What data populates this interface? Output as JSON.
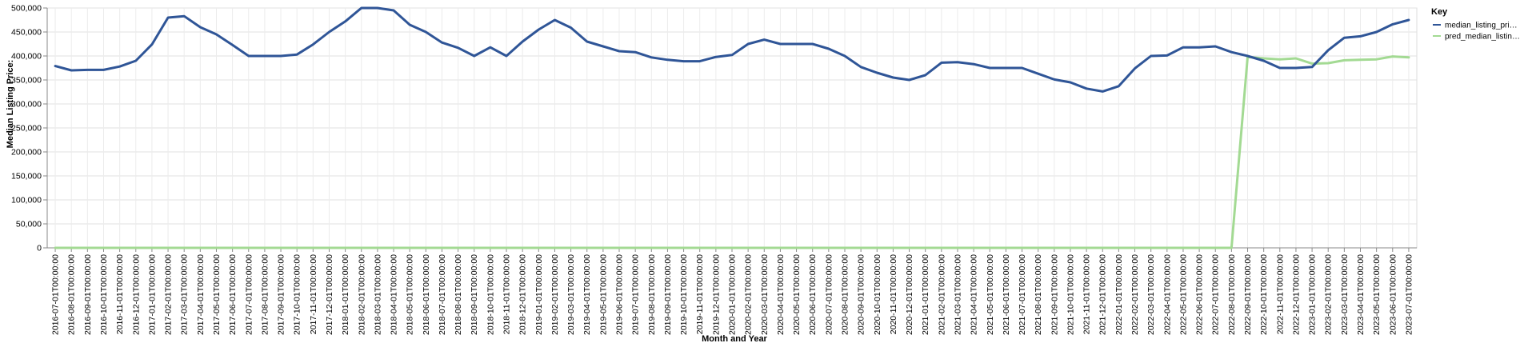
{
  "chart_data": {
    "type": "line",
    "xlabel": "Month and Year",
    "ylabel": "Median Listing Price:",
    "ylim": [
      0,
      500000
    ],
    "yticks": [
      "0",
      "50,000",
      "100,000",
      "150,000",
      "200,000",
      "250,000",
      "300,000",
      "350,000",
      "400,000",
      "450,000",
      "500,000"
    ],
    "ytick_values": [
      0,
      50000,
      100000,
      150000,
      200000,
      250000,
      300000,
      350000,
      400000,
      450000,
      500000
    ],
    "grid": true,
    "legend_position": "right",
    "legend_title": "Key",
    "categories": [
      "2016-07-01T00:00:00",
      "2016-08-01T00:00:00",
      "2016-09-01T00:00:00",
      "2016-10-01T00:00:00",
      "2016-11-01T00:00:00",
      "2016-12-01T00:00:00",
      "2017-01-01T00:00:00",
      "2017-02-01T00:00:00",
      "2017-03-01T00:00:00",
      "2017-04-01T00:00:00",
      "2017-05-01T00:00:00",
      "2017-06-01T00:00:00",
      "2017-07-01T00:00:00",
      "2017-08-01T00:00:00",
      "2017-09-01T00:00:00",
      "2017-10-01T00:00:00",
      "2017-11-01T00:00:00",
      "2017-12-01T00:00:00",
      "2018-01-01T00:00:00",
      "2018-02-01T00:00:00",
      "2018-03-01T00:00:00",
      "2018-04-01T00:00:00",
      "2018-05-01T00:00:00",
      "2018-06-01T00:00:00",
      "2018-07-01T00:00:00",
      "2018-08-01T00:00:00",
      "2018-09-01T00:00:00",
      "2018-10-01T00:00:00",
      "2018-11-01T00:00:00",
      "2018-12-01T00:00:00",
      "2019-01-01T00:00:00",
      "2019-02-01T00:00:00",
      "2019-03-01T00:00:00",
      "2019-04-01T00:00:00",
      "2019-05-01T00:00:00",
      "2019-06-01T00:00:00",
      "2019-07-01T00:00:00",
      "2019-08-01T00:00:00",
      "2019-09-01T00:00:00",
      "2019-10-01T00:00:00",
      "2019-11-01T00:00:00",
      "2019-12-01T00:00:00",
      "2020-01-01T00:00:00",
      "2020-02-01T00:00:00",
      "2020-03-01T00:00:00",
      "2020-04-01T00:00:00",
      "2020-05-01T00:00:00",
      "2020-06-01T00:00:00",
      "2020-07-01T00:00:00",
      "2020-08-01T00:00:00",
      "2020-09-01T00:00:00",
      "2020-10-01T00:00:00",
      "2020-11-01T00:00:00",
      "2020-12-01T00:00:00",
      "2021-01-01T00:00:00",
      "2021-02-01T00:00:00",
      "2021-03-01T00:00:00",
      "2021-04-01T00:00:00",
      "2021-05-01T00:00:00",
      "2021-06-01T00:00:00",
      "2021-07-01T00:00:00",
      "2021-08-01T00:00:00",
      "2021-09-01T00:00:00",
      "2021-10-01T00:00:00",
      "2021-11-01T00:00:00",
      "2021-12-01T00:00:00",
      "2022-01-01T00:00:00",
      "2022-02-01T00:00:00",
      "2022-03-01T00:00:00",
      "2022-04-01T00:00:00",
      "2022-05-01T00:00:00",
      "2022-06-01T00:00:00",
      "2022-07-01T00:00:00",
      "2022-08-01T00:00:00",
      "2022-09-01T00:00:00",
      "2022-10-01T00:00:00",
      "2022-11-01T00:00:00",
      "2022-12-01T00:00:00",
      "2023-01-01T00:00:00",
      "2023-02-01T00:00:00",
      "2023-03-01T00:00:00",
      "2023-04-01T00:00:00",
      "2023-05-01T00:00:00",
      "2023-06-01T00:00:00",
      "2023-07-01T00:00:00"
    ],
    "series": [
      {
        "name": "median_listing_pri…",
        "color": "#2f5597",
        "values": [
          379000,
          370000,
          371000,
          371000,
          378000,
          390000,
          424000,
          480000,
          483000,
          460000,
          445000,
          423000,
          400000,
          400000,
          400000,
          403000,
          424000,
          450000,
          472000,
          500000,
          500000,
          495000,
          465000,
          450000,
          428000,
          417000,
          400000,
          418000,
          400000,
          430000,
          455000,
          475000,
          459000,
          430000,
          420000,
          410000,
          408000,
          397000,
          392000,
          389000,
          389000,
          398000,
          402000,
          425000,
          434000,
          425000,
          425000,
          425000,
          415000,
          400000,
          377000,
          365000,
          355000,
          350000,
          360000,
          386000,
          387000,
          383000,
          375000,
          375000,
          375000,
          363000,
          351000,
          345000,
          332000,
          326000,
          337000,
          374000,
          400000,
          401000,
          418000,
          418000,
          420000,
          408000,
          400000,
          390000,
          375000,
          375000,
          377000,
          412000,
          438000,
          441000,
          450000,
          466000,
          475000
        ]
      },
      {
        "name": "pred_median_listin…",
        "color": "#a3da93",
        "values": [
          0,
          0,
          0,
          0,
          0,
          0,
          0,
          0,
          0,
          0,
          0,
          0,
          0,
          0,
          0,
          0,
          0,
          0,
          0,
          0,
          0,
          0,
          0,
          0,
          0,
          0,
          0,
          0,
          0,
          0,
          0,
          0,
          0,
          0,
          0,
          0,
          0,
          0,
          0,
          0,
          0,
          0,
          0,
          0,
          0,
          0,
          0,
          0,
          0,
          0,
          0,
          0,
          0,
          0,
          0,
          0,
          0,
          0,
          0,
          0,
          0,
          0,
          0,
          0,
          0,
          0,
          0,
          0,
          0,
          0,
          0,
          0,
          0,
          0,
          398000,
          395000,
          393000,
          395000,
          384000,
          385000,
          391000,
          392000,
          393000,
          399000,
          397000
        ]
      }
    ]
  }
}
